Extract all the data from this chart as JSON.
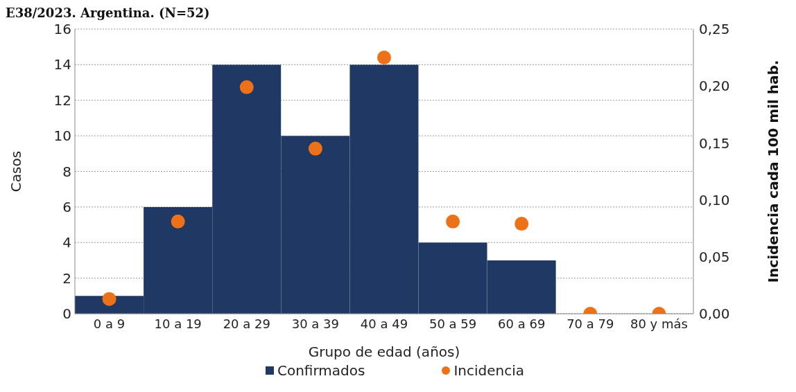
{
  "chart_data": {
    "type": "bar",
    "title": "E38/2023. Argentina. (N=52)",
    "xlabel": "Grupo de edad (años)",
    "ylabel": "Casos",
    "y2label": "Incidencia cada 100 mil hab.",
    "categories": [
      "0 a 9",
      "10 a 19",
      "20 a 29",
      "30 a 39",
      "40 a 49",
      "50 a 59",
      "60 a 69",
      "70 a 79",
      "80 y más"
    ],
    "series": [
      {
        "name": "Confirmados",
        "type": "bar",
        "color": "#203864",
        "values": [
          1,
          6,
          14,
          10,
          14,
          4,
          3,
          0,
          0
        ]
      },
      {
        "name": "Incidencia",
        "type": "scatter",
        "axis": "y2",
        "color": "#ec7118",
        "marker": "circle",
        "values": [
          0.013,
          0.081,
          0.199,
          0.145,
          0.225,
          0.081,
          0.079,
          0,
          0
        ]
      }
    ],
    "ylim": [
      0,
      16
    ],
    "yticks": [
      0,
      2,
      4,
      6,
      8,
      10,
      12,
      14,
      16
    ],
    "y2lim": [
      0,
      0.25
    ],
    "y2ticks": [
      {
        "value": 0,
        "label": "0,00"
      },
      {
        "value": 0.05,
        "label": "0,05"
      },
      {
        "value": 0.1,
        "label": "0,10"
      },
      {
        "value": 0.15,
        "label": "0,15"
      },
      {
        "value": 0.2,
        "label": "0,20"
      },
      {
        "value": 0.25,
        "label": "0,25"
      }
    ],
    "grid": "y",
    "legend": "bottom"
  }
}
